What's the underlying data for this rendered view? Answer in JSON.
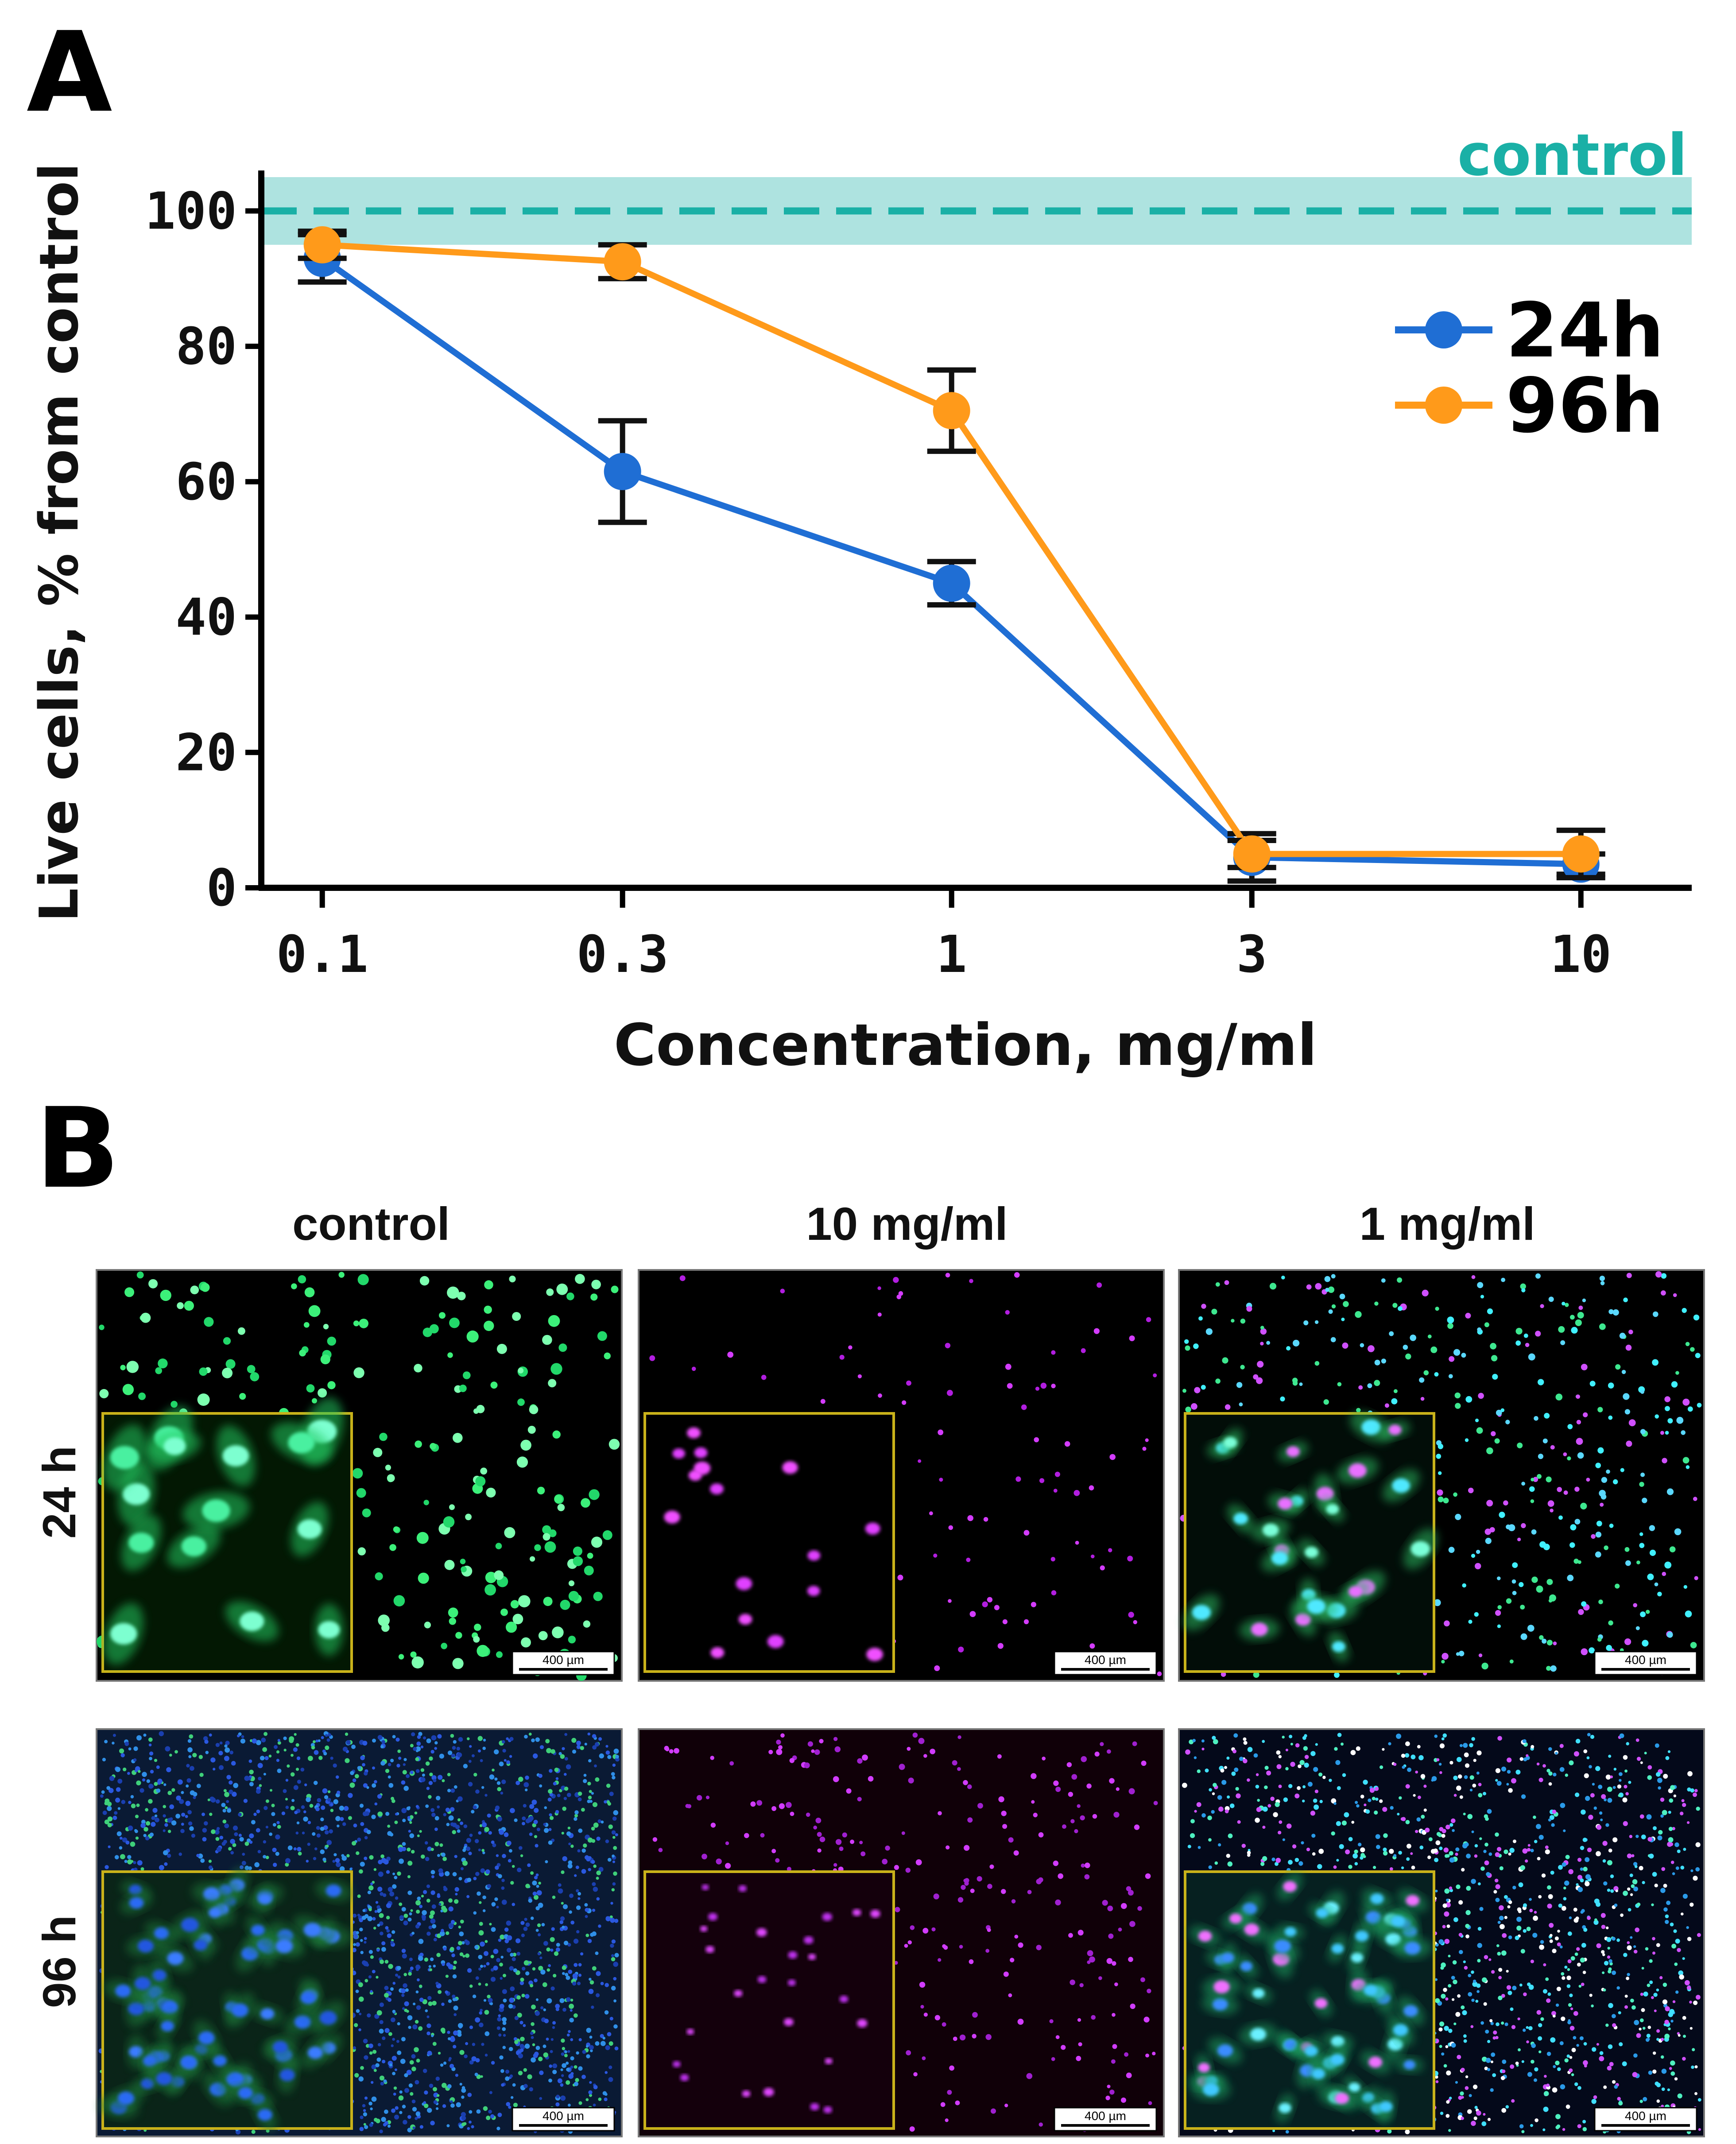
{
  "panels": {
    "a": "A",
    "b": "B"
  },
  "chart_data": {
    "type": "line",
    "xscale": "log",
    "x": [
      0.1,
      0.3,
      1,
      3,
      10
    ],
    "xticks": [
      "0.1",
      "0.3",
      "1",
      "3",
      "10"
    ],
    "xlim": [
      0.08,
      15
    ],
    "ylim": [
      0,
      105
    ],
    "yticks": [
      0,
      20,
      40,
      60,
      80,
      100
    ],
    "xlabel": "Concentration, mg/ml",
    "ylabel": "Live cells, % from control",
    "control": {
      "label": "control",
      "value": 100,
      "band": [
        95,
        105
      ],
      "color": "#1ab0a6",
      "band_color": "#aee3e0"
    },
    "series": [
      {
        "name": "24h",
        "color": "#1f6ed4",
        "values": [
          93,
          61.5,
          45,
          4.5,
          3.5
        ],
        "errors": [
          3.5,
          7.5,
          3.2,
          3.5,
          1.5
        ]
      },
      {
        "name": "96h",
        "color": "#ff9a1a",
        "values": [
          95,
          92.5,
          70.5,
          5,
          5
        ],
        "errors": [
          2,
          2.5,
          6,
          2,
          3.5
        ]
      }
    ],
    "legend": "upper-right"
  },
  "micrographs": {
    "columns": [
      "control",
      "10 mg/ml",
      "1 mg/ml"
    ],
    "rows": [
      "24 h",
      "96 h"
    ],
    "scale_bar": "400 µm"
  }
}
